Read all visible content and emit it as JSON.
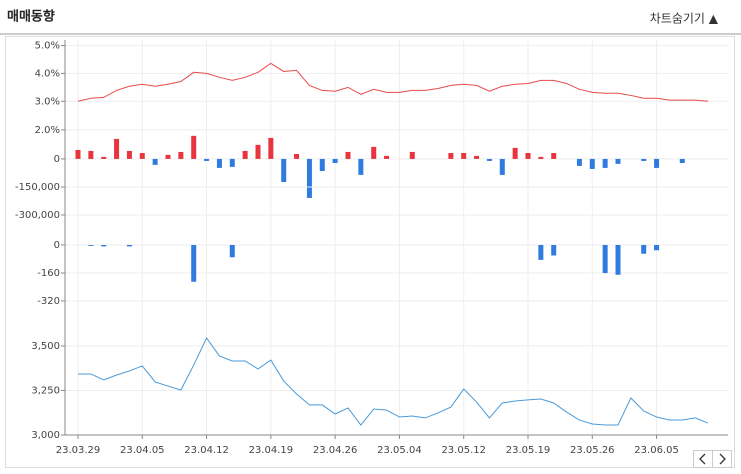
{
  "header": {
    "title": "매매동향",
    "toggle": "차트숨기기 ▲"
  },
  "chart_data": [
    {
      "type": "line",
      "color": "#e84a4a",
      "values": [
        3.0,
        3.11,
        3.14,
        3.39,
        3.54,
        3.61,
        3.54,
        3.61,
        3.71,
        4.04,
        4.0,
        3.86,
        3.75,
        3.86,
        4.04,
        4.36,
        4.07,
        4.11,
        3.57,
        3.39,
        3.36,
        3.5,
        3.25,
        3.43,
        3.32,
        3.32,
        3.39,
        3.39,
        3.46,
        3.57,
        3.61,
        3.57,
        3.36,
        3.54,
        3.61,
        3.64,
        3.75,
        3.75,
        3.64,
        3.43,
        3.32,
        3.29,
        3.29,
        3.21,
        3.11,
        3.11,
        3.04,
        3.04,
        3.04,
        3.0
      ],
      "ylim": [
        2.4,
        5.2
      ],
      "yticks": [
        {
          "value": 3,
          "label": "3.0%"
        },
        {
          "value": 4,
          "label": "4.0%"
        },
        {
          "value": 5,
          "label": "5.0%"
        }
      ]
    },
    {
      "type": "bar",
      "positive_color": "#e8343e",
      "negative_color": "#2f7be0",
      "values": [
        0.62,
        0.55,
        0.14,
        1.38,
        0.55,
        0.41,
        -0.41,
        0.28,
        0.48,
        1.59,
        -0.14,
        -0.62,
        -0.55,
        0.55,
        0.97,
        1.45,
        -1.59,
        0.34,
        -2.69,
        -0.83,
        -0.28,
        0.48,
        -1.1,
        0.83,
        0.21,
        0,
        0.48,
        0,
        0,
        0.41,
        0.41,
        0.21,
        -0.14,
        -1.1,
        0.76,
        0.41,
        0.14,
        0.41,
        0,
        -0.48,
        -0.69,
        -0.62,
        -0.34,
        0,
        -0.14,
        -0.62,
        0,
        -0.28,
        0,
        0
      ],
      "ylim": [
        -2.9,
        2.2
      ],
      "yticks": [
        0,
        {
          "value": 2,
          "label": "2.0%"
        }
      ]
    },
    {
      "type": "axis",
      "ylim": [
        -300000,
        0
      ],
      "yticks": [
        {
          "value": -150000,
          "label": "-150,000"
        },
        {
          "value": -300000,
          "label": "-300,000"
        }
      ]
    },
    {
      "type": "bar",
      "positive_color": "#e8343e",
      "negative_color": "#2f7be0",
      "values": [
        0,
        -5,
        -8,
        0,
        -8,
        0,
        0,
        0,
        0,
        -210,
        0,
        0,
        -70,
        0,
        0,
        0,
        0,
        0,
        0,
        0,
        0,
        0,
        0,
        0,
        0,
        0,
        0,
        0,
        0,
        0,
        0,
        0,
        0,
        0,
        0,
        0,
        -85,
        -60,
        0,
        0,
        0,
        -160,
        -170,
        0,
        -50,
        -30,
        0,
        0,
        0,
        0
      ],
      "ylim": [
        -380,
        60
      ],
      "yticks": [
        0,
        -160,
        -320
      ]
    },
    {
      "type": "line",
      "color": "#4a9ad8",
      "categories": [
        "23.03.29",
        null,
        null,
        null,
        null,
        "23.04.05",
        null,
        null,
        null,
        null,
        "23.04.12",
        null,
        null,
        null,
        null,
        "23.04.19",
        null,
        null,
        null,
        null,
        "23.04.26",
        null,
        null,
        null,
        null,
        "23.05.04",
        null,
        null,
        null,
        null,
        "23.05.12",
        null,
        null,
        null,
        null,
        "23.05.19",
        null,
        null,
        null,
        null,
        "23.05.26",
        null,
        null,
        null,
        null,
        "23.06.05",
        null,
        null,
        null,
        null
      ],
      "values": [
        3343,
        3343,
        3309,
        3337,
        3360,
        3388,
        3298,
        3275,
        3253,
        3393,
        3545,
        3444,
        3416,
        3416,
        3371,
        3421,
        3303,
        3230,
        3169,
        3169,
        3118,
        3152,
        3056,
        3146,
        3140,
        3101,
        3107,
        3096,
        3124,
        3157,
        3258,
        3185,
        3096,
        3180,
        3191,
        3197,
        3202,
        3180,
        3129,
        3084,
        3062,
        3056,
        3056,
        3208,
        3135,
        3101,
        3084,
        3084,
        3096,
        3067
      ],
      "ylim": [
        3000,
        3600
      ],
      "yticks": [
        {
          "value": 3000,
          "label": "3,000"
        },
        {
          "value": 3250,
          "label": "3,250"
        },
        {
          "value": 3500,
          "label": "3,500"
        }
      ]
    }
  ]
}
